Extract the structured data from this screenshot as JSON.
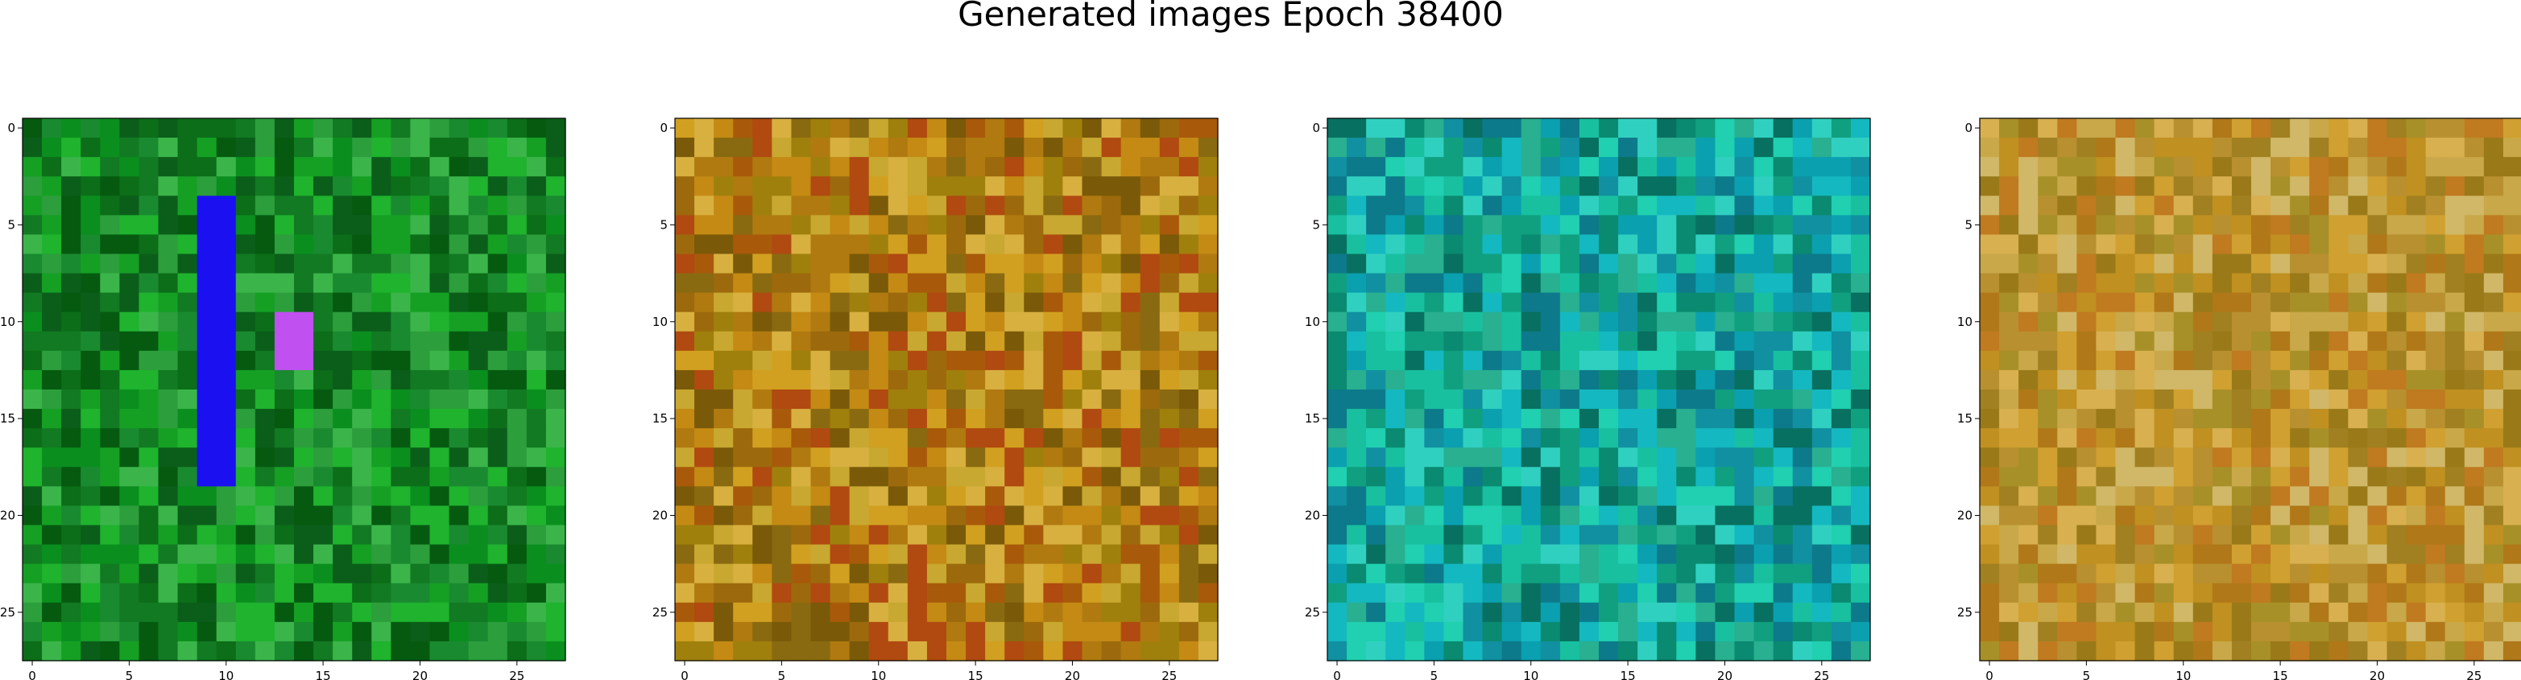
{
  "title": "Generated images Epoch 38400",
  "chart_data": [
    {
      "type": "heatmap",
      "grid": [
        28,
        28
      ],
      "xticks": [
        "0",
        "5",
        "10",
        "15",
        "20",
        "25"
      ],
      "yticks": [
        "0",
        "5",
        "10",
        "15",
        "20",
        "25"
      ],
      "palette": [
        "#0b5e1a",
        "#127a22",
        "#0a8f1e",
        "#15a024",
        "#1fb32e",
        "#0c6e18",
        "#3bb54a",
        "#055a10",
        "#1a8a30",
        "#2c9e3c"
      ],
      "features": [
        {
          "label": "blue vertical stroke",
          "color": "#1a10f0",
          "x": [
            9,
            10
          ],
          "y": [
            4,
            18
          ]
        },
        {
          "label": "violet blob",
          "color": "#c050f0",
          "x": [
            13,
            14
          ],
          "y": [
            10,
            12
          ]
        }
      ]
    },
    {
      "type": "heatmap",
      "grid": [
        28,
        28
      ],
      "xticks": [
        "0",
        "5",
        "10",
        "15",
        "20",
        "25"
      ],
      "yticks": [
        "0",
        "5",
        "10",
        "15",
        "20",
        "25"
      ],
      "palette": [
        "#b07a10",
        "#c48a14",
        "#9c6a0c",
        "#d2a020",
        "#a85a0a",
        "#8a6a10",
        "#c8a830",
        "#b04a10",
        "#7a5a08",
        "#d8b040",
        "#a0800c"
      ]
    },
    {
      "type": "heatmap",
      "grid": [
        28,
        28
      ],
      "xticks": [
        "0",
        "5",
        "10",
        "15",
        "20",
        "25"
      ],
      "yticks": [
        "0",
        "5",
        "10",
        "15",
        "20",
        "25"
      ],
      "palette": [
        "#10a080",
        "#18c0a0",
        "#0a8a70",
        "#20d0b0",
        "#1090a0",
        "#0c7a8a",
        "#28b090",
        "#0aa0b0",
        "#14b8c0",
        "#087060",
        "#30d0c0"
      ]
    },
    {
      "type": "heatmap",
      "grid": [
        28,
        28
      ],
      "xticks": [
        "0",
        "5",
        "10",
        "15",
        "20",
        "25"
      ],
      "yticks": [
        "0",
        "5",
        "10",
        "15",
        "20",
        "25"
      ],
      "palette": [
        "#c09020",
        "#d0a030",
        "#b07818",
        "#c8a848",
        "#a08020",
        "#d8b050",
        "#b89030",
        "#c07a20",
        "#9a7a18",
        "#d0b868",
        "#a89028"
      ]
    }
  ]
}
